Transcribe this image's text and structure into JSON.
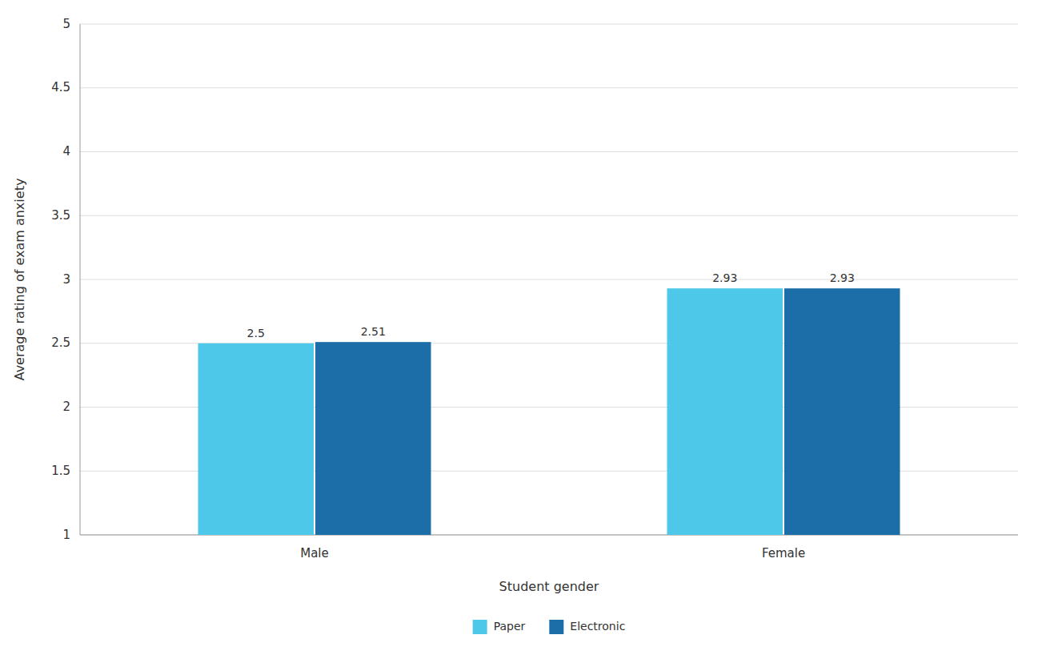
{
  "chart_data": {
    "type": "bar",
    "categories": [
      "Male",
      "Female"
    ],
    "series": [
      {
        "name": "Paper",
        "color": "#4DC8E8",
        "values": [
          2.5,
          2.93
        ]
      },
      {
        "name": "Electronic",
        "color": "#1B6EA8",
        "values": [
          2.51,
          2.93
        ]
      }
    ],
    "xlabel": "Student gender",
    "ylabel": "Average rating of exam anxiety",
    "ylim": [
      1,
      5
    ],
    "yticks": [
      1,
      1.5,
      2,
      2.5,
      3,
      3.5,
      4,
      4.5,
      5
    ],
    "grid": true,
    "legend": "bottom",
    "data_labels": true
  }
}
